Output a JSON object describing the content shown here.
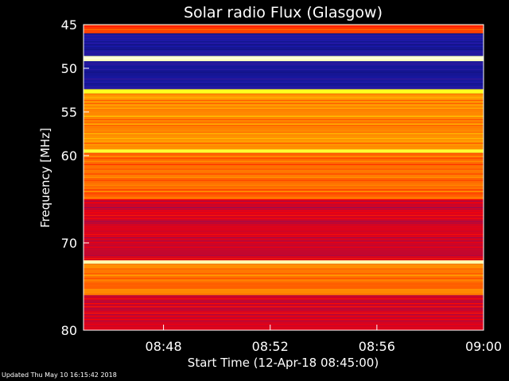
{
  "chart_data": {
    "type": "heatmap",
    "title": "Solar radio Flux (Glasgow)",
    "xlabel": "Start Time (12-Apr-18 08:45:00)",
    "ylabel": "Frequency [MHz]",
    "x_unit": "time (UT)",
    "xlim": [
      "08:45",
      "09:00"
    ],
    "ylim": [
      45,
      80
    ],
    "y_reversed": true,
    "x_ticks": [
      "08:48",
      "08:52",
      "08:56",
      "09:00"
    ],
    "y_ticks": [
      45,
      50,
      55,
      60,
      70,
      80
    ],
    "colormap": [
      "#000000",
      "#1b1bb4",
      "#ff0000",
      "#ffff00",
      "#ffffff"
    ],
    "frequency_bands_mhz": [
      {
        "from": 45.0,
        "to": 46.0,
        "level": 0.55
      },
      {
        "from": 46.0,
        "to": 48.6,
        "level": 0.22
      },
      {
        "from": 48.6,
        "to": 49.2,
        "level": 0.95
      },
      {
        "from": 49.2,
        "to": 52.4,
        "level": 0.22
      },
      {
        "from": 52.4,
        "to": 52.9,
        "level": 0.78
      },
      {
        "from": 52.9,
        "to": 59.3,
        "level": 0.64
      },
      {
        "from": 59.3,
        "to": 59.7,
        "level": 0.8
      },
      {
        "from": 59.7,
        "to": 65.0,
        "level": 0.6
      },
      {
        "from": 65.0,
        "to": 72.0,
        "level": 0.45
      },
      {
        "from": 72.0,
        "to": 72.4,
        "level": 0.92
      },
      {
        "from": 72.4,
        "to": 76.0,
        "level": 0.62
      },
      {
        "from": 76.0,
        "to": 80.0,
        "level": 0.45
      }
    ]
  },
  "footer": {
    "updated": "Updated Thu May 10 16:15:42 2018"
  }
}
